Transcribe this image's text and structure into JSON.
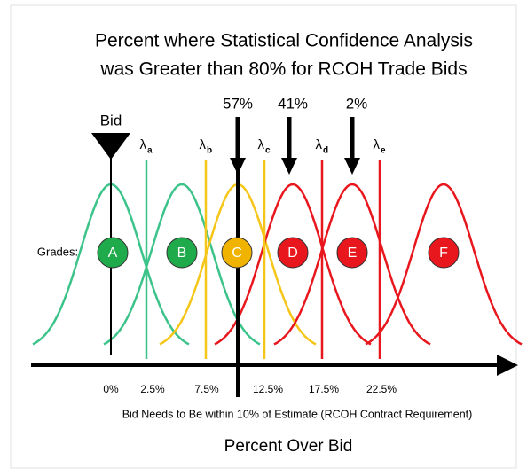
{
  "title": [
    "Percent where Statistical Confidence Analysis",
    "was Greater than 80% for RCOH Trade Bids"
  ],
  "bid_label": "Bid",
  "percent_labels": [
    "57%",
    "41%",
    "2%"
  ],
  "lambdas": [
    {
      "symbol": "λ",
      "subscript": "a"
    },
    {
      "symbol": "λ",
      "subscript": "b"
    },
    {
      "symbol": "λ",
      "subscript": "c"
    },
    {
      "symbol": "λ",
      "subscript": "d"
    },
    {
      "symbol": "λ",
      "subscript": "e"
    }
  ],
  "grades_label": "Grades:",
  "grades": [
    "A",
    "B",
    "C",
    "D",
    "E",
    "F"
  ],
  "axis_labels": [
    "0%",
    "2.5%",
    "7.5%",
    "12.5%",
    "17.5%",
    "22.5%"
  ],
  "footnote": "Bid Needs to Be within 10% of Estimate (RCOH Contract Requirement)",
  "axis_title": "Percent Over Bid"
}
